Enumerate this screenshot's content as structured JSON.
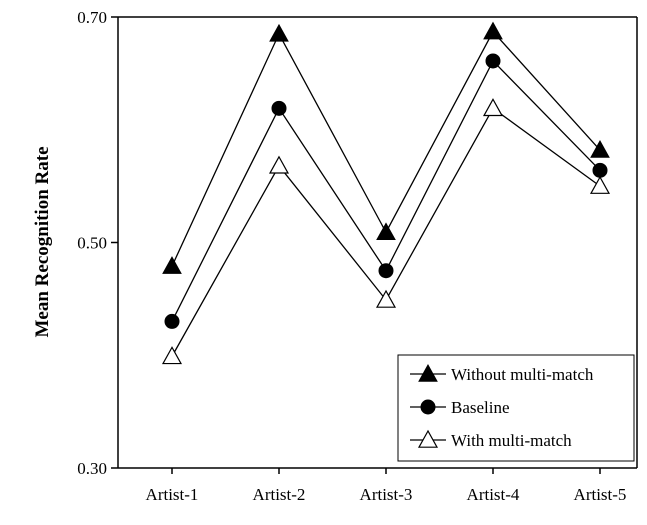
{
  "chart_data": {
    "type": "line",
    "title": "",
    "xlabel": "",
    "ylabel": "Mean Recognition Rate",
    "categories": [
      "Artist-1",
      "Artist-2",
      "Artist-3",
      "Artist-4",
      "Artist-5"
    ],
    "ylim": [
      0.3,
      0.7
    ],
    "yticks": [
      "0.30",
      "0.50",
      "0.70"
    ],
    "grid": false,
    "legend_position": "bottom-right",
    "series": [
      {
        "name": "Without multi-match",
        "marker": "filled-triangle",
        "color": "#000000",
        "values": [
          0.479,
          0.685,
          0.509,
          0.687,
          0.582
        ]
      },
      {
        "name": "Baseline",
        "marker": "filled-circle",
        "color": "#000000",
        "values": [
          0.43,
          0.619,
          0.475,
          0.661,
          0.564
        ]
      },
      {
        "name": "With multi-match",
        "marker": "open-triangle",
        "color": "#000000",
        "values": [
          0.399,
          0.568,
          0.449,
          0.619,
          0.55
        ]
      }
    ]
  }
}
